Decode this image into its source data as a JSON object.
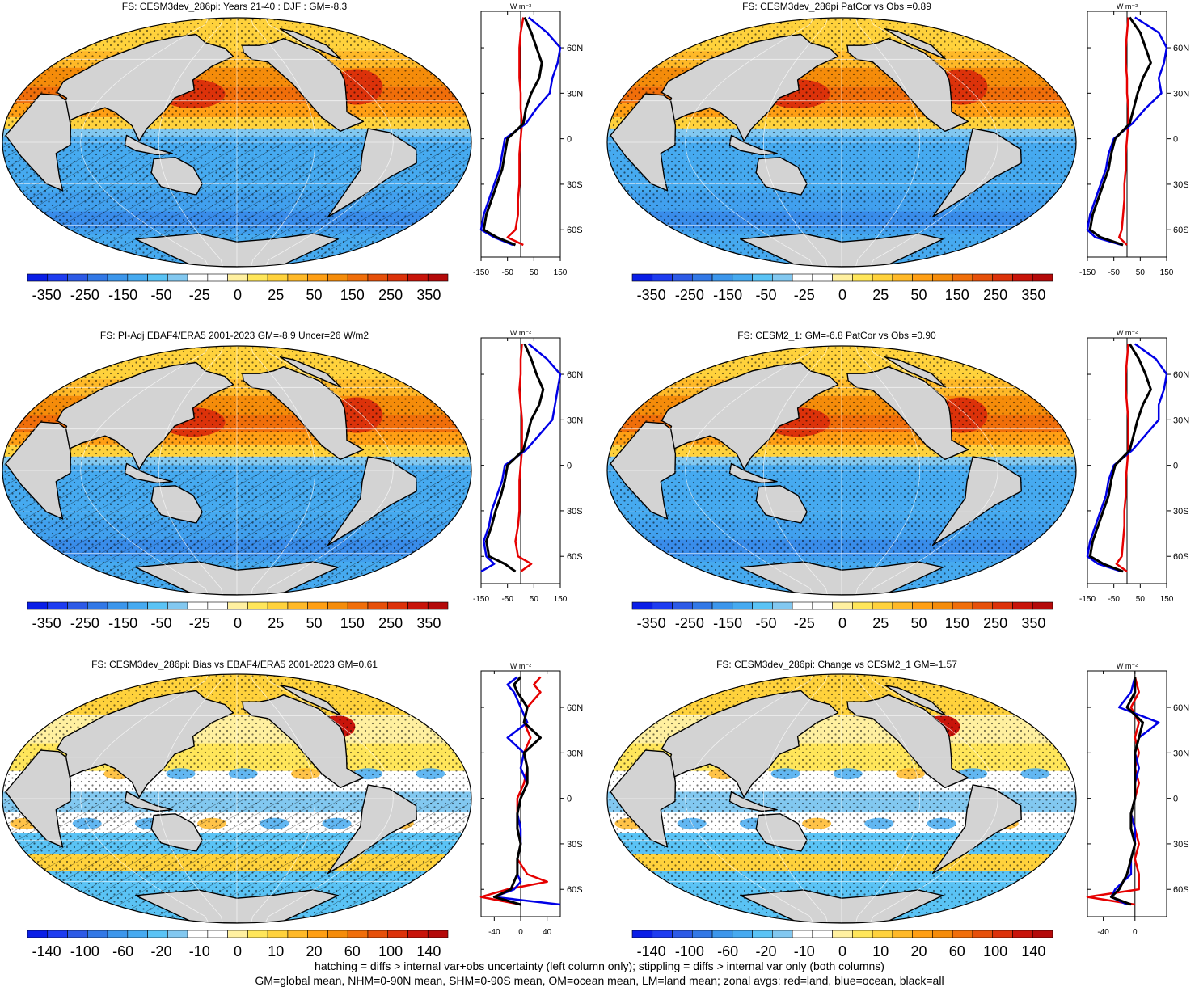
{
  "panels": [
    {
      "id": "p1",
      "title": "FS: CESM3dev_286pi: Years 21-40 : DJF : GM=-8.3",
      "kind": "abs",
      "hatch": true
    },
    {
      "id": "p2",
      "title": "FS: CESM3dev_286pi PatCor vs Obs =0.89",
      "kind": "abs",
      "hatch": false
    },
    {
      "id": "p3",
      "title": "FS: PI-Adj EBAF4/ERA5 2001-2023 GM=-8.9 Uncer=26 W/m2",
      "kind": "abs",
      "hatch": true
    },
    {
      "id": "p4",
      "title": "FS: CESM2_1: GM=-6.8 PatCor vs Obs =0.90",
      "kind": "abs",
      "hatch": false
    },
    {
      "id": "p5",
      "title": "FS: CESM3dev_286pi: Bias vs EBAF4/ERA5 2001-2023 GM=0.61",
      "kind": "diff",
      "hatch": true
    },
    {
      "id": "p6",
      "title": "FS: CESM3dev_286pi: Change vs CESM2_1 GM=-1.57",
      "kind": "diff",
      "hatch": false
    }
  ],
  "colorbar_abs": {
    "labels": [
      "-350",
      "-250",
      "-150",
      "-50",
      "-25",
      "0",
      "25",
      "50",
      "150",
      "250",
      "350"
    ],
    "colors": [
      "#0a1ee6",
      "#1e3cf0",
      "#2d5ae6",
      "#3278e6",
      "#3c96eb",
      "#46aaf0",
      "#5ac3f5",
      "#82c8f0",
      "#ffffff",
      "#ffffff",
      "#fff0a0",
      "#ffe65a",
      "#ffd23c",
      "#ffb928",
      "#ff9f14",
      "#f58c0a",
      "#f06e0a",
      "#e6500a",
      "#dc320a",
      "#c8140a",
      "#b40a0a"
    ]
  },
  "colorbar_diff": {
    "labels": [
      "-140",
      "-100",
      "-60",
      "-20",
      "-10",
      "0",
      "10",
      "20",
      "60",
      "100",
      "140"
    ],
    "colors": [
      "#0a1ee6",
      "#1e3cf0",
      "#2d5ae6",
      "#3278e6",
      "#3c96eb",
      "#46aaf0",
      "#5ac3f5",
      "#82c8f0",
      "#ffffff",
      "#ffffff",
      "#fff0a0",
      "#ffe65a",
      "#ffd23c",
      "#ffb928",
      "#ff9f14",
      "#f58c0a",
      "#f06e0a",
      "#e6500a",
      "#dc320a",
      "#c8140a",
      "#b40a0a"
    ]
  },
  "zonal_units": "W m⁻²",
  "chart_data": [
    {
      "type": "line",
      "title": "",
      "xlabel": "",
      "ylabel": "",
      "xlim": [
        -150,
        150
      ],
      "xticklabels": [
        "-150",
        "-50",
        "50",
        "150"
      ],
      "yticklabels": [
        "60N",
        "30N",
        "0",
        "30S",
        "60S"
      ],
      "series": [
        {
          "color": "#e60000",
          "lat": [
            80,
            70,
            60,
            50,
            40,
            30,
            20,
            10,
            0,
            -10,
            -20,
            -30,
            -40,
            -50,
            -60,
            -65,
            -70
          ],
          "values": [
            10,
            0,
            -5,
            -5,
            -5,
            0,
            0,
            5,
            0,
            -5,
            -5,
            -5,
            -10,
            -10,
            -20,
            -50,
            10
          ]
        },
        {
          "color": "#0000e6",
          "lat": [
            80,
            70,
            60,
            50,
            40,
            30,
            20,
            10,
            0,
            -10,
            -20,
            -30,
            -40,
            -50,
            -60,
            -65,
            -70
          ],
          "values": [
            30,
            100,
            150,
            140,
            120,
            110,
            60,
            20,
            -60,
            -70,
            -80,
            -100,
            -120,
            -140,
            -150,
            -100,
            -30
          ]
        },
        {
          "color": "#000000",
          "lat": [
            80,
            70,
            60,
            50,
            40,
            30,
            20,
            10,
            0,
            -10,
            -20,
            -30,
            -40,
            -50,
            -60,
            -65,
            -70
          ],
          "values": [
            15,
            40,
            60,
            80,
            70,
            40,
            20,
            10,
            -50,
            -60,
            -70,
            -90,
            -110,
            -130,
            -140,
            -90,
            -20
          ]
        }
      ]
    },
    {
      "type": "line",
      "title": "",
      "xlabel": "",
      "ylabel": "",
      "xlim": [
        -150,
        150
      ],
      "xticklabels": [
        "-150",
        "-50",
        "50",
        "150"
      ],
      "yticklabels": [
        "60N",
        "30N",
        "0",
        "30S",
        "60S"
      ],
      "series": [
        {
          "color": "#e60000",
          "lat": [
            80,
            70,
            60,
            50,
            40,
            30,
            20,
            10,
            0,
            -10,
            -20,
            -30,
            -40,
            -50,
            -60,
            -65,
            -70
          ],
          "values": [
            5,
            0,
            -5,
            -5,
            0,
            0,
            5,
            5,
            0,
            -5,
            -5,
            -10,
            -10,
            -15,
            -20,
            -30,
            0
          ]
        },
        {
          "color": "#0000e6",
          "lat": [
            80,
            70,
            60,
            50,
            40,
            30,
            20,
            10,
            0,
            -10,
            -20,
            -30,
            -40,
            -50,
            -60,
            -65,
            -70
          ],
          "values": [
            30,
            120,
            150,
            140,
            120,
            130,
            70,
            20,
            -50,
            -70,
            -80,
            -100,
            -120,
            -140,
            -150,
            -120,
            -20
          ]
        },
        {
          "color": "#000000",
          "lat": [
            80,
            70,
            60,
            50,
            40,
            30,
            20,
            10,
            0,
            -10,
            -20,
            -30,
            -40,
            -50,
            -60,
            -65,
            -70
          ],
          "values": [
            10,
            50,
            70,
            90,
            60,
            40,
            25,
            10,
            -45,
            -60,
            -70,
            -90,
            -110,
            -130,
            -140,
            -100,
            -15
          ]
        }
      ]
    },
    {
      "type": "line",
      "title": "",
      "xlabel": "",
      "ylabel": "",
      "xlim": [
        -150,
        150
      ],
      "xticklabels": [
        "-150",
        "-50",
        "50",
        "150"
      ],
      "yticklabels": [
        "60N",
        "30N",
        "0",
        "30S",
        "60S"
      ],
      "series": [
        {
          "color": "#e60000",
          "lat": [
            80,
            70,
            60,
            50,
            40,
            30,
            20,
            10,
            0,
            -10,
            -20,
            -30,
            -40,
            -50,
            -60,
            -65,
            -70
          ],
          "values": [
            5,
            0,
            0,
            -5,
            0,
            5,
            5,
            5,
            0,
            -5,
            -5,
            -5,
            -10,
            -20,
            -10,
            40,
            0
          ]
        },
        {
          "color": "#0000e6",
          "lat": [
            80,
            70,
            60,
            50,
            40,
            30,
            20,
            10,
            0,
            -10,
            -20,
            -30,
            -40,
            -50,
            -60,
            -65,
            -70
          ],
          "values": [
            30,
            100,
            150,
            140,
            130,
            120,
            70,
            20,
            -60,
            -70,
            -90,
            -110,
            -120,
            -140,
            -130,
            -100,
            -200
          ]
        },
        {
          "color": "#000000",
          "lat": [
            80,
            70,
            60,
            50,
            40,
            30,
            20,
            10,
            0,
            -10,
            -20,
            -30,
            -40,
            -50,
            -60,
            -65,
            -70
          ],
          "values": [
            15,
            40,
            60,
            85,
            70,
            40,
            25,
            10,
            -50,
            -60,
            -75,
            -95,
            -110,
            -130,
            -120,
            -60,
            -20
          ]
        }
      ]
    },
    {
      "type": "line",
      "title": "",
      "xlabel": "",
      "ylabel": "",
      "xlim": [
        -150,
        150
      ],
      "xticklabels": [
        "-150",
        "-50",
        "50",
        "150"
      ],
      "yticklabels": [
        "60N",
        "30N",
        "0",
        "30S",
        "60S"
      ],
      "series": [
        {
          "color": "#e60000",
          "lat": [
            80,
            70,
            60,
            50,
            40,
            30,
            20,
            10,
            0,
            -10,
            -20,
            -30,
            -40,
            -50,
            -60,
            -65,
            -70
          ],
          "values": [
            5,
            0,
            -5,
            -5,
            0,
            5,
            5,
            5,
            0,
            -5,
            -5,
            -10,
            -10,
            -15,
            -20,
            -40,
            0
          ]
        },
        {
          "color": "#0000e6",
          "lat": [
            80,
            70,
            60,
            50,
            40,
            30,
            20,
            10,
            0,
            -10,
            -20,
            -30,
            -40,
            -50,
            -60,
            -65,
            -70
          ],
          "values": [
            30,
            110,
            150,
            140,
            120,
            120,
            70,
            20,
            -50,
            -70,
            -80,
            -100,
            -120,
            -140,
            -150,
            -110,
            -20
          ]
        },
        {
          "color": "#000000",
          "lat": [
            80,
            70,
            60,
            50,
            40,
            30,
            20,
            10,
            0,
            -10,
            -20,
            -30,
            -40,
            -50,
            -60,
            -65,
            -70
          ],
          "values": [
            10,
            45,
            70,
            90,
            60,
            40,
            25,
            10,
            -45,
            -60,
            -70,
            -90,
            -110,
            -130,
            -140,
            -90,
            -15
          ]
        }
      ]
    },
    {
      "type": "line",
      "title": "",
      "xlabel": "",
      "ylabel": "",
      "xlim": [
        -60,
        60
      ],
      "xticklabels": [
        "-40",
        "0",
        "40"
      ],
      "yticklabels": [
        "60N",
        "30N",
        "0",
        "30S",
        "60S"
      ],
      "series": [
        {
          "color": "#e60000",
          "lat": [
            80,
            75,
            70,
            60,
            50,
            40,
            30,
            20,
            10,
            0,
            -10,
            -20,
            -30,
            -40,
            -50,
            -55,
            -60,
            -65,
            -70
          ],
          "values": [
            30,
            20,
            30,
            10,
            5,
            15,
            5,
            10,
            5,
            -5,
            -5,
            -5,
            0,
            -5,
            10,
            40,
            -20,
            -60,
            0
          ]
        },
        {
          "color": "#0000e6",
          "lat": [
            80,
            75,
            70,
            60,
            50,
            40,
            30,
            20,
            10,
            0,
            -10,
            -20,
            -30,
            -40,
            -50,
            -55,
            -60,
            -65,
            -70
          ],
          "values": [
            -5,
            -20,
            -10,
            0,
            10,
            -20,
            5,
            0,
            10,
            0,
            -5,
            0,
            0,
            -5,
            -5,
            0,
            -10,
            -40,
            60
          ]
        },
        {
          "color": "#000000",
          "lat": [
            80,
            75,
            70,
            60,
            50,
            40,
            30,
            20,
            10,
            0,
            -10,
            -20,
            -30,
            -40,
            -50,
            -55,
            -60,
            -65,
            -70
          ],
          "values": [
            0,
            -10,
            -5,
            10,
            5,
            30,
            5,
            10,
            10,
            0,
            -5,
            -5,
            0,
            -5,
            -5,
            -10,
            -15,
            -40,
            0
          ]
        }
      ]
    },
    {
      "type": "line",
      "title": "",
      "xlabel": "",
      "ylabel": "",
      "xlim": [
        -60,
        40
      ],
      "xticklabels": [
        "-40",
        "0"
      ],
      "yticklabels": [
        "60N",
        "30N",
        "0",
        "30S",
        "60S"
      ],
      "series": [
        {
          "color": "#e60000",
          "lat": [
            80,
            70,
            60,
            50,
            40,
            30,
            20,
            10,
            0,
            -10,
            -20,
            -30,
            -40,
            -50,
            -60,
            -65,
            -70
          ],
          "values": [
            0,
            5,
            -5,
            5,
            0,
            5,
            0,
            5,
            0,
            -5,
            0,
            5,
            0,
            5,
            5,
            -60,
            0
          ]
        },
        {
          "color": "#0000e6",
          "lat": [
            80,
            70,
            60,
            50,
            40,
            30,
            20,
            10,
            0,
            -10,
            -20,
            -30,
            -40,
            -50,
            -60,
            -65,
            -70
          ],
          "values": [
            0,
            -5,
            -20,
            30,
            5,
            0,
            5,
            0,
            0,
            -5,
            0,
            0,
            -5,
            -5,
            -25,
            -30,
            -10
          ]
        },
        {
          "color": "#000000",
          "lat": [
            80,
            70,
            60,
            50,
            40,
            30,
            20,
            10,
            0,
            -10,
            -20,
            -30,
            -40,
            -50,
            -60,
            -65,
            -70
          ],
          "values": [
            0,
            0,
            -10,
            10,
            5,
            0,
            0,
            0,
            0,
            -5,
            -5,
            0,
            -5,
            -10,
            -20,
            -30,
            -5
          ]
        }
      ]
    }
  ],
  "footer": {
    "line1": "hatching = diffs > internal var+obs uncertainty (left column only); stippling = diffs > internal var only (both columns)",
    "line2": "GM=global mean, NHM=0-90N mean, SHM=0-90S mean, OM=ocean mean, LM=land mean; zonal avgs: red=land, blue=ocean, black=all"
  }
}
